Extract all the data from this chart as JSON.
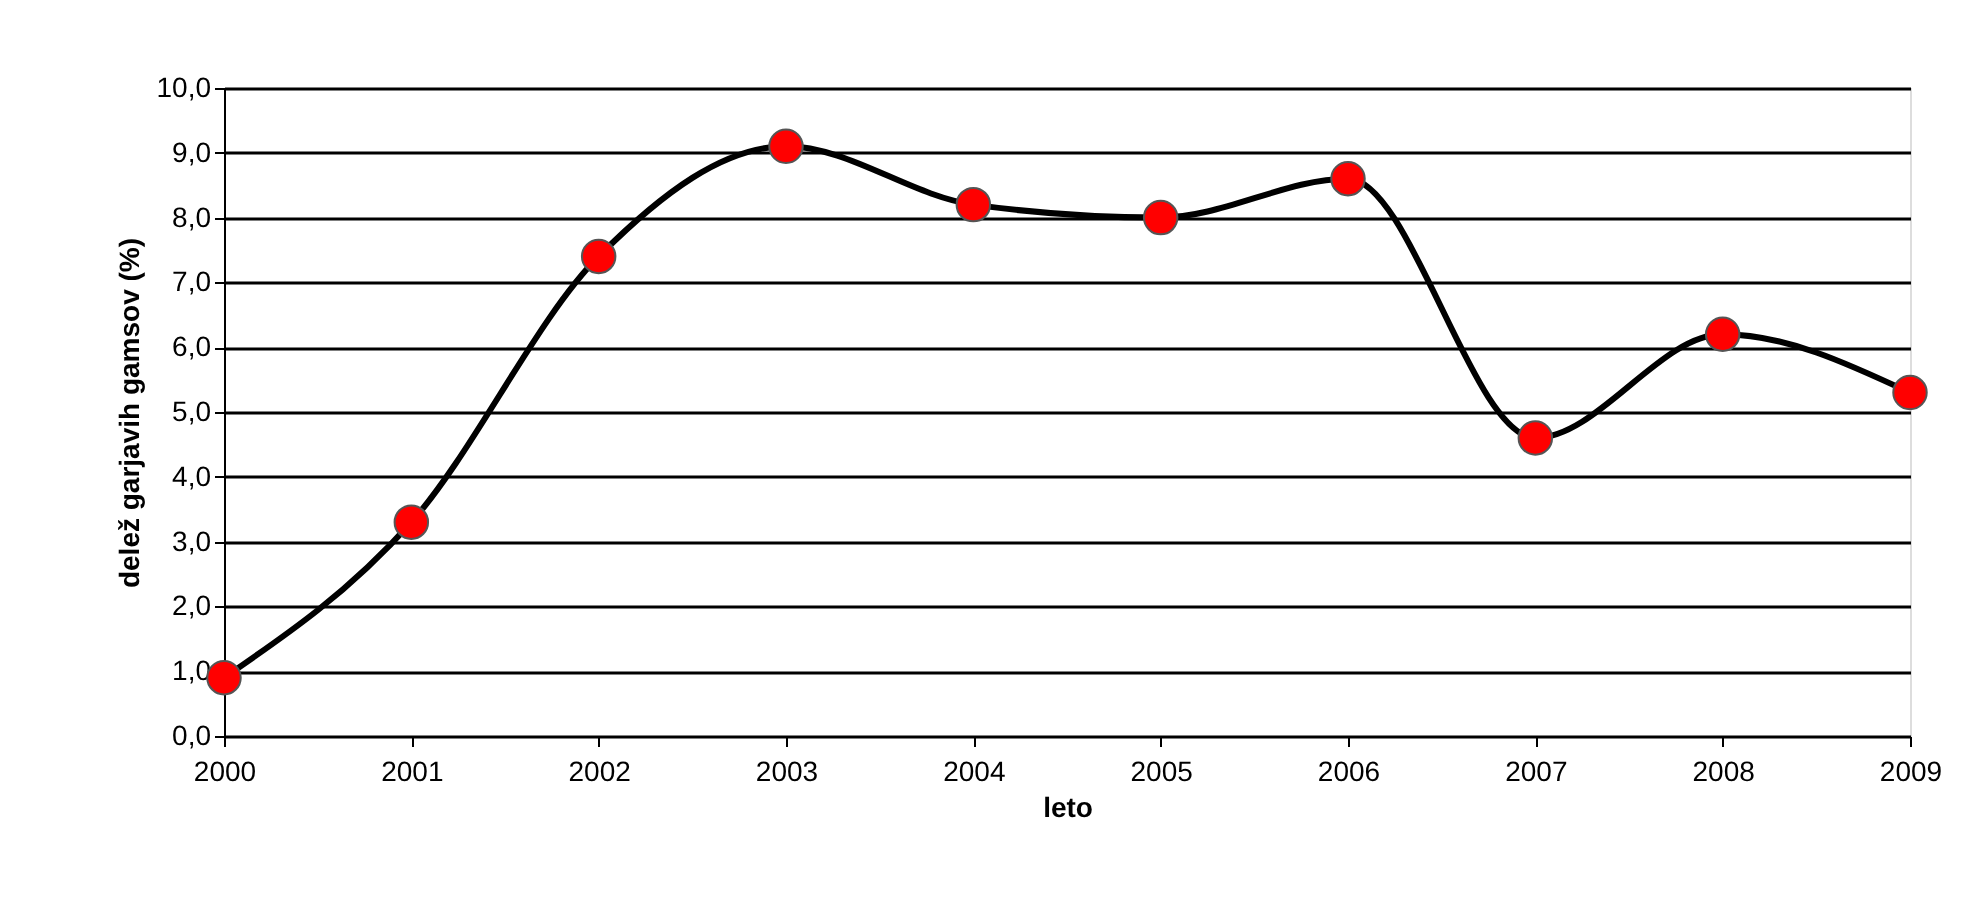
{
  "chart_data": {
    "type": "line",
    "xlabel": "leto",
    "ylabel": "delež garjavih gamsov (%)",
    "categories": [
      "2000",
      "2001",
      "2002",
      "2003",
      "2004",
      "2005",
      "2006",
      "2007",
      "2008",
      "2009"
    ],
    "series": [
      {
        "color": "#000000",
        "colors": [
          "#ff0000",
          "#ff0000",
          "#ff0000",
          "#ff0000",
          "#ff0000",
          "#ff0000",
          "#ff0000",
          "#ff0000",
          "#ff0000",
          "#ff0000"
        ],
        "values": [
          0.9,
          3.3,
          7.4,
          9.1,
          8.2,
          8.0,
          8.6,
          4.6,
          6.2,
          5.3
        ]
      }
    ],
    "ylim": [
      0,
      10
    ],
    "yticks": [
      {
        "value": 0,
        "label": "0,0"
      },
      {
        "value": 1,
        "label": "1,0"
      },
      {
        "value": 2,
        "label": "2,0"
      },
      {
        "value": 3,
        "label": "3,0"
      },
      {
        "value": 4,
        "label": "4,0"
      },
      {
        "value": 5,
        "label": "5,0"
      },
      {
        "value": 6,
        "label": "6,0"
      },
      {
        "value": 7,
        "label": "7,0"
      },
      {
        "value": 8,
        "label": "8,0"
      },
      {
        "value": 9,
        "label": "9,0"
      },
      {
        "value": 10,
        "label": "10,0"
      }
    ],
    "grid": "y",
    "marker": "circle",
    "line_style": "solid"
  }
}
